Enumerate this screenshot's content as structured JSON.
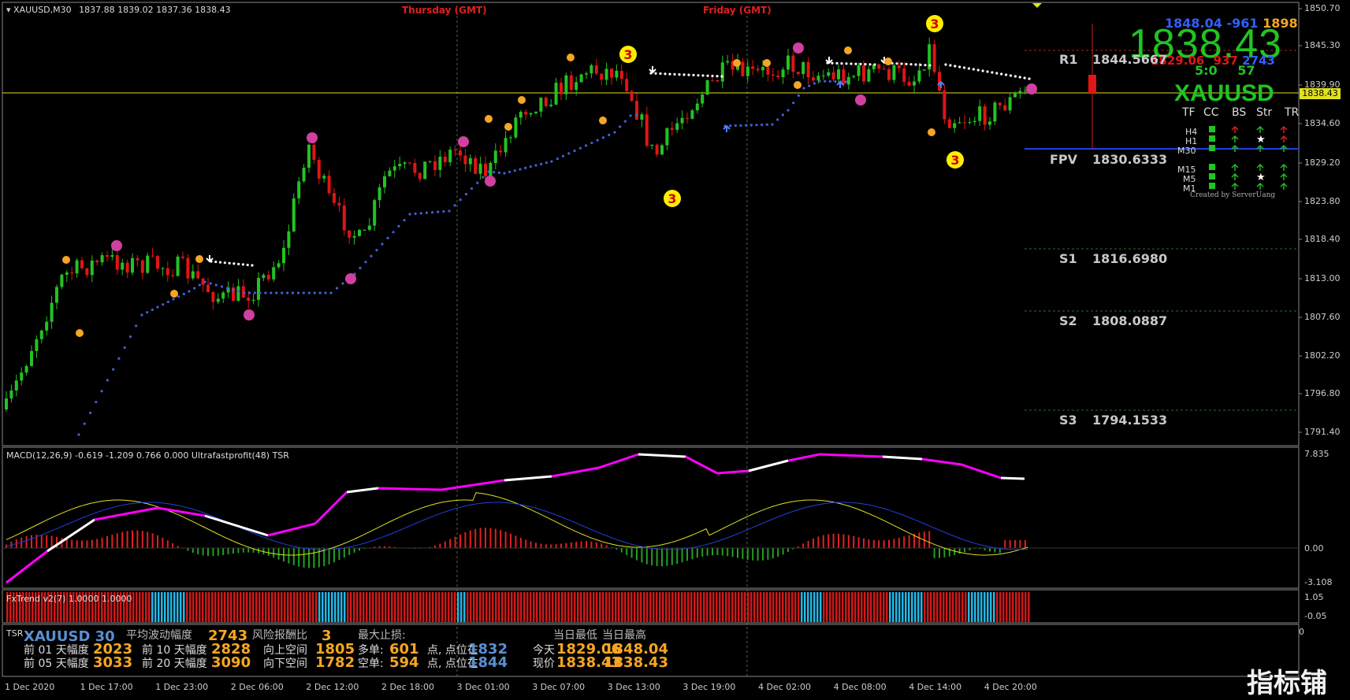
{
  "header": {
    "symbol_tf": "XAUUSD,M30",
    "ohlc": "1837.88 1839.02 1837.36 1838.43",
    "day1": "Thursday   (GMT)",
    "day2": "Friday   (GMT)"
  },
  "price_axis": {
    "labels": [
      "1850.70",
      "1845.30",
      "1839.90",
      "1834.60",
      "1829.20",
      "1823.80",
      "1818.40",
      "1813.00",
      "1807.60",
      "1802.20",
      "1796.80",
      "1791.40"
    ],
    "current": "1838.43"
  },
  "macd_axis": {
    "labels": [
      "7.835",
      "0.00",
      "-3.108"
    ]
  },
  "fx_axis": {
    "labels": [
      "1.05",
      "-0.05"
    ]
  },
  "tsr_axis": {
    "labels": [
      "0"
    ]
  },
  "time_axis": {
    "labels": [
      "1 Dec 2020",
      "1 Dec 17:00",
      "1 Dec 23:00",
      "2 Dec 06:00",
      "2 Dec 12:00",
      "2 Dec 18:00",
      "3 Dec 01:00",
      "3 Dec 07:00",
      "3 Dec 13:00",
      "3 Dec 19:00",
      "4 Dec 02:00",
      "4 Dec 08:00",
      "4 Dec 14:00",
      "4 Dec 20:00"
    ]
  },
  "info_panel": {
    "high": "1848.04",
    "diff": "-961",
    "range": "1898",
    "big_price": "1838.43",
    "low": "1829.06",
    "v1": "937",
    "v2": "2743",
    "timer_a": "5:0",
    "timer_b": "57",
    "symbol": "XAUUSD",
    "cols": [
      "TF",
      "CC",
      "BS",
      "Str",
      "TR"
    ],
    "tfs": [
      "H4",
      "H1",
      "M30",
      "M15",
      "M5",
      "M1"
    ],
    "credit": "Created by ServerUang"
  },
  "pivots": [
    {
      "name": "R1",
      "value": "1844.5667"
    },
    {
      "name": "FPV",
      "value": "1830.6333"
    },
    {
      "name": "S1",
      "value": "1816.6980"
    },
    {
      "name": "S2",
      "value": "1808.0887"
    },
    {
      "name": "S3",
      "value": "1794.1533"
    }
  ],
  "signals": {
    "label": "3"
  },
  "macd": {
    "title": "MACD(12,26,9) -0.619 -1.209 0.766 0.000  Ultrafastprofit(48)  TSR"
  },
  "fxtrend": {
    "title": "FxTrend v2(7) 1.0000 1.0000"
  },
  "tsr": {
    "tag": "TSR",
    "symbol": "XAUUSD 30",
    "h_avg": "平均波动幅度",
    "v_avg": "2743",
    "h_risk": "风险报酬比",
    "v_risk": "3",
    "h_stop": "最大止损:",
    "h_today": "当日最低",
    "h_today2": "当日最高",
    "r1a": "前 01 天幅度",
    "r1av": "2023",
    "r1b": "前 10 天幅度",
    "r1bv": "2828",
    "r1c": "向上空间",
    "r1cv": "1805",
    "r1d": "多单:",
    "r1dv": "601",
    "r1e": "点, 点位在",
    "r1ev": "1832",
    "r1f": "今天",
    "r1fv1": "1829.06",
    "r1fv2": "1848.04",
    "r2a": "前 05 天幅度",
    "r2av": "3033",
    "r2b": "前 20 天幅度",
    "r2bv": "3090",
    "r2c": "向下空间",
    "r2cv": "1782",
    "r2d": "空单:",
    "r2dv": "594",
    "r2e": "点, 点位在",
    "r2ev": "1844",
    "r2f": "现价",
    "r2fv1": "1838.43",
    "r2fv2": "1838.43"
  },
  "watermark": {
    "text": "指标铺"
  },
  "colors": {
    "bull": "#22c322",
    "bear": "#e01515",
    "accent_yellow": "#e0e020",
    "pivot_line": "#2040e0",
    "orange": "#f5a623",
    "magenta": "#ff00ff",
    "cyan": "#22b8e8"
  }
}
